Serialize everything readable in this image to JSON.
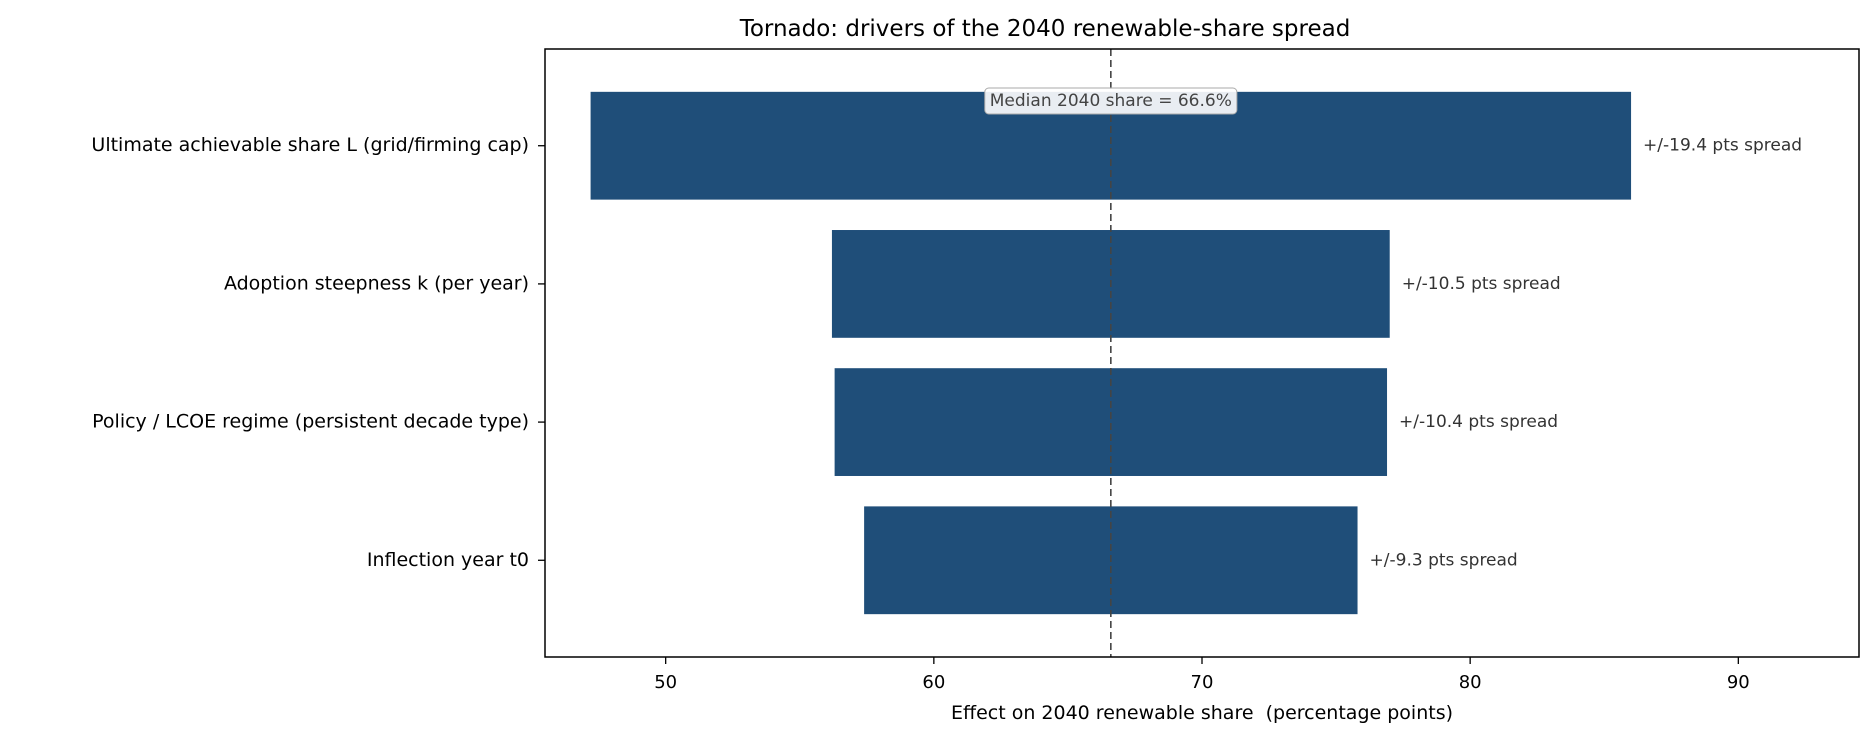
{
  "chart_data": {
    "type": "bar",
    "orientation": "horizontal",
    "title": "Tornado: drivers of the 2040 renewable-share spread",
    "xlabel": "Effect on 2040 renewable share  (percentage points)",
    "ylabel": "",
    "xlim": [
      45.5,
      94.5
    ],
    "xticks": [
      50,
      60,
      70,
      80,
      90
    ],
    "grid": false,
    "colors": {
      "bar": "#1f4e79",
      "median_line": "#444444"
    },
    "median": {
      "value": 66.6,
      "label": "Median 2040 share = 66.6%"
    },
    "bars": [
      {
        "category": "Ultimate achievable share L (grid/firming cap)",
        "low": 47.2,
        "high": 86.0,
        "label": "+/-19.4 pts spread"
      },
      {
        "category": "Adoption steepness k (per year)",
        "low": 56.2,
        "high": 77.0,
        "label": "+/-10.5 pts spread"
      },
      {
        "category": "Policy / LCOE regime (persistent decade type)",
        "low": 56.3,
        "high": 76.9,
        "label": "+/-10.4 pts spread"
      },
      {
        "category": "Inflection year t0",
        "low": 57.4,
        "high": 75.8,
        "label": "+/-9.3 pts spread"
      }
    ]
  }
}
